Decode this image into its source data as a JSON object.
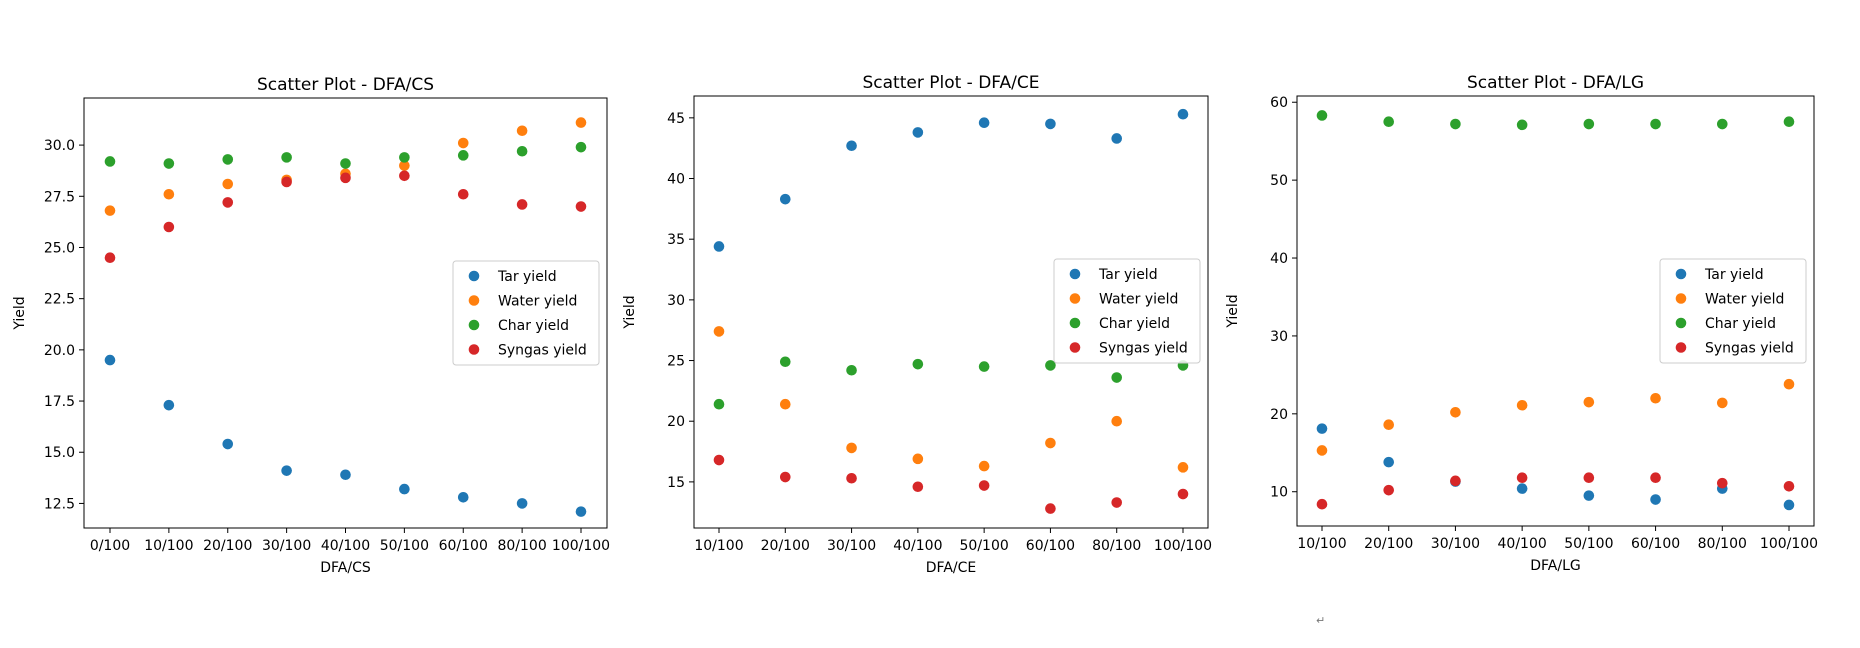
{
  "page": {
    "return_mark": "↵"
  },
  "chart_data": [
    {
      "type": "scatter",
      "title": "Scatter Plot - DFA/CS",
      "xlabel": "DFA/CS",
      "ylabel": "Yield",
      "categories": [
        "0/100",
        "10/100",
        "20/100",
        "30/100",
        "40/100",
        "50/100",
        "60/100",
        "80/100",
        "100/100"
      ],
      "ylim": [
        11.3,
        32.3
      ],
      "yticks": [
        12.5,
        15.0,
        17.5,
        20.0,
        22.5,
        25.0,
        27.5,
        30.0
      ],
      "ytick_labels": [
        "12.5",
        "15.0",
        "17.5",
        "20.0",
        "22.5",
        "25.0",
        "27.5",
        "30.0"
      ],
      "legend": "center-right",
      "grid": false,
      "series": [
        {
          "name": "Tar yield",
          "color": "#1f77b4",
          "values": [
            19.5,
            17.3,
            15.4,
            14.1,
            13.9,
            13.2,
            12.8,
            12.5,
            12.1
          ]
        },
        {
          "name": "Water yield",
          "color": "#ff7f0e",
          "values": [
            26.8,
            27.6,
            28.1,
            28.3,
            28.6,
            29.0,
            30.1,
            30.7,
            31.1
          ]
        },
        {
          "name": "Char yield",
          "color": "#2ca02c",
          "values": [
            29.2,
            29.1,
            29.3,
            29.4,
            29.1,
            29.4,
            29.5,
            29.7,
            29.9
          ]
        },
        {
          "name": "Syngas yield",
          "color": "#d62728",
          "values": [
            24.5,
            26.0,
            27.2,
            28.2,
            28.4,
            28.5,
            27.6,
            27.1,
            27.0
          ]
        }
      ]
    },
    {
      "type": "scatter",
      "title": "Scatter Plot - DFA/CE",
      "xlabel": "DFA/CE",
      "ylabel": "Yield",
      "categories": [
        "10/100",
        "20/100",
        "30/100",
        "40/100",
        "50/100",
        "60/100",
        "80/100",
        "100/100"
      ],
      "ylim": [
        11.2,
        46.8
      ],
      "yticks": [
        15,
        20,
        25,
        30,
        35,
        40,
        45
      ],
      "ytick_labels": [
        "15",
        "20",
        "25",
        "30",
        "35",
        "40",
        "45"
      ],
      "legend": "center-right",
      "grid": false,
      "series": [
        {
          "name": "Tar yield",
          "color": "#1f77b4",
          "values": [
            34.4,
            38.3,
            42.7,
            43.8,
            44.6,
            44.5,
            43.3,
            45.3
          ]
        },
        {
          "name": "Water yield",
          "color": "#ff7f0e",
          "values": [
            27.4,
            21.4,
            17.8,
            16.9,
            16.3,
            18.2,
            20.0,
            16.2
          ]
        },
        {
          "name": "Char yield",
          "color": "#2ca02c",
          "values": [
            21.4,
            24.9,
            24.2,
            24.7,
            24.5,
            24.6,
            23.6,
            24.6
          ]
        },
        {
          "name": "Syngas yield",
          "color": "#d62728",
          "values": [
            16.8,
            15.4,
            15.3,
            14.6,
            14.7,
            12.8,
            13.3,
            14.0
          ]
        }
      ]
    },
    {
      "type": "scatter",
      "title": "Scatter Plot - DFA/LG",
      "xlabel": "DFA/LG",
      "ylabel": "Yield",
      "categories": [
        "10/100",
        "20/100",
        "30/100",
        "40/100",
        "50/100",
        "60/100",
        "80/100",
        "100/100"
      ],
      "ylim": [
        5.6,
        60.8
      ],
      "yticks": [
        10,
        20,
        30,
        40,
        50,
        60
      ],
      "ytick_labels": [
        "10",
        "20",
        "30",
        "40",
        "50",
        "60"
      ],
      "legend": "center-right",
      "grid": false,
      "series": [
        {
          "name": "Tar yield",
          "color": "#1f77b4",
          "values": [
            18.1,
            13.8,
            11.3,
            10.4,
            9.5,
            9.0,
            10.4,
            8.3
          ]
        },
        {
          "name": "Water yield",
          "color": "#ff7f0e",
          "values": [
            15.3,
            18.6,
            20.2,
            21.1,
            21.5,
            22.0,
            21.4,
            23.8
          ]
        },
        {
          "name": "Char yield",
          "color": "#2ca02c",
          "values": [
            58.3,
            57.5,
            57.2,
            57.1,
            57.2,
            57.2,
            57.2,
            57.5
          ]
        },
        {
          "name": "Syngas yield",
          "color": "#d62728",
          "values": [
            8.4,
            10.2,
            11.4,
            11.8,
            11.8,
            11.8,
            11.1,
            10.7
          ]
        }
      ]
    }
  ]
}
